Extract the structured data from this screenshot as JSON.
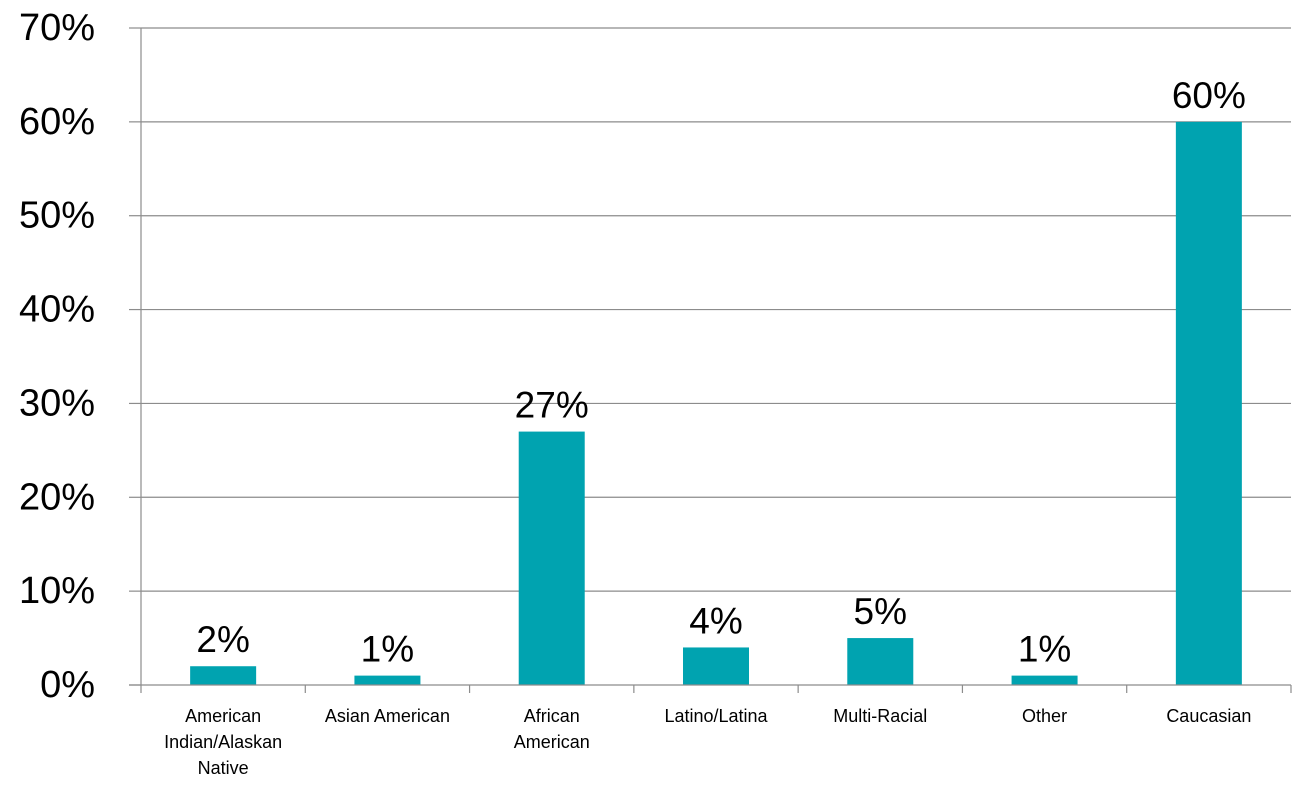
{
  "chart_data": {
    "type": "bar",
    "title": "",
    "xlabel": "",
    "ylabel": "",
    "categories": [
      "American Indian/Alaskan Native",
      "Asian American",
      "African American",
      "Latino/Latina",
      "Multi-Racial",
      "Other",
      "Caucasian"
    ],
    "category_label_lines": [
      [
        "American",
        "Indian/Alaskan",
        "Native"
      ],
      [
        "Asian American"
      ],
      [
        "African",
        "American"
      ],
      [
        "Latino/Latina"
      ],
      [
        "Multi-Racial"
      ],
      [
        "Other"
      ],
      [
        "Caucasian"
      ]
    ],
    "values": [
      2,
      1,
      27,
      4,
      5,
      1,
      60
    ],
    "data_labels": [
      "2%",
      "1%",
      "27%",
      "4%",
      "5%",
      "1%",
      "60%"
    ],
    "ylim": [
      0,
      70
    ],
    "y_ticks": [
      0,
      10,
      20,
      30,
      40,
      50,
      60,
      70
    ],
    "y_tick_labels": [
      "0%",
      "10%",
      "20%",
      "30%",
      "40%",
      "50%",
      "60%",
      "70%"
    ],
    "grid": true,
    "legend": "none",
    "bar_color": "#00A3B0",
    "grid_color": "#8C8C8C"
  }
}
